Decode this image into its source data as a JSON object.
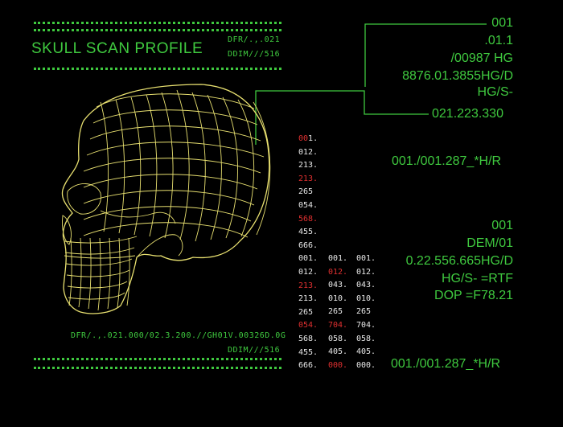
{
  "header": {
    "title": "SKULL SCAN PROFILE",
    "code1": "DFR/.,.021",
    "code2": "DDIM///516"
  },
  "footer": {
    "code1": "DFR/.,.021.000/02.3.200.//GH01V.00326D.0G",
    "code2": "DDIM///516"
  },
  "right_top": [
    "001",
    ".01.1",
    "/00987 HG",
    "8876.01.3855HG/D",
    "HG/S-"
  ],
  "pointer_value": "021.223.330",
  "ref_line_1": "001./001.287_*H/R",
  "right_mid": [
    "001",
    "DEM/01",
    "0.22.556.665HG/D",
    "HG/S- =RTF",
    "DOP =F78.21"
  ],
  "ref_line_2": "001./001.287_*H/R",
  "col1": [
    {
      "t": "001.",
      "c": "mix"
    },
    {
      "t": "012.",
      "c": "g"
    },
    {
      "t": "213.",
      "c": "g"
    },
    {
      "t": "213.",
      "c": "r"
    },
    {
      "t": "265",
      "c": "g"
    },
    {
      "t": "054.",
      "c": "g"
    },
    {
      "t": "568.",
      "c": "r"
    },
    {
      "t": "455.",
      "c": "g"
    },
    {
      "t": "666.",
      "c": "g"
    },
    {
      "t": "001.",
      "c": "g"
    },
    {
      "t": "012.",
      "c": "g"
    },
    {
      "t": "213.",
      "c": "r"
    },
    {
      "t": "213.",
      "c": "g"
    },
    {
      "t": "265",
      "c": "g"
    },
    {
      "t": "054.",
      "c": "r"
    },
    {
      "t": "568.",
      "c": "g"
    },
    {
      "t": "455.",
      "c": "g"
    },
    {
      "t": "666.",
      "c": "g"
    }
  ],
  "col2": [
    {
      "t": "001.",
      "c": "g"
    },
    {
      "t": "012.",
      "c": "r"
    },
    {
      "t": "043.",
      "c": "g"
    },
    {
      "t": "010.",
      "c": "g"
    },
    {
      "t": "265",
      "c": "g"
    },
    {
      "t": "704.",
      "c": "r"
    },
    {
      "t": "058.",
      "c": "g"
    },
    {
      "t": "405.",
      "c": "g"
    },
    {
      "t": "000.",
      "c": "r"
    }
  ],
  "col3": [
    {
      "t": "001.",
      "c": "g"
    },
    {
      "t": "012.",
      "c": "g"
    },
    {
      "t": "043.",
      "c": "g"
    },
    {
      "t": "010.",
      "c": "g"
    },
    {
      "t": "265",
      "c": "g"
    },
    {
      "t": "704.",
      "c": "g"
    },
    {
      "t": "058.",
      "c": "g"
    },
    {
      "t": "405.",
      "c": "g"
    },
    {
      "t": "000.",
      "c": "g"
    }
  ],
  "colors": {
    "green": "#3fc93f",
    "wire": "#e8e070",
    "red": "#e03030",
    "text": "#e8e8e8"
  }
}
